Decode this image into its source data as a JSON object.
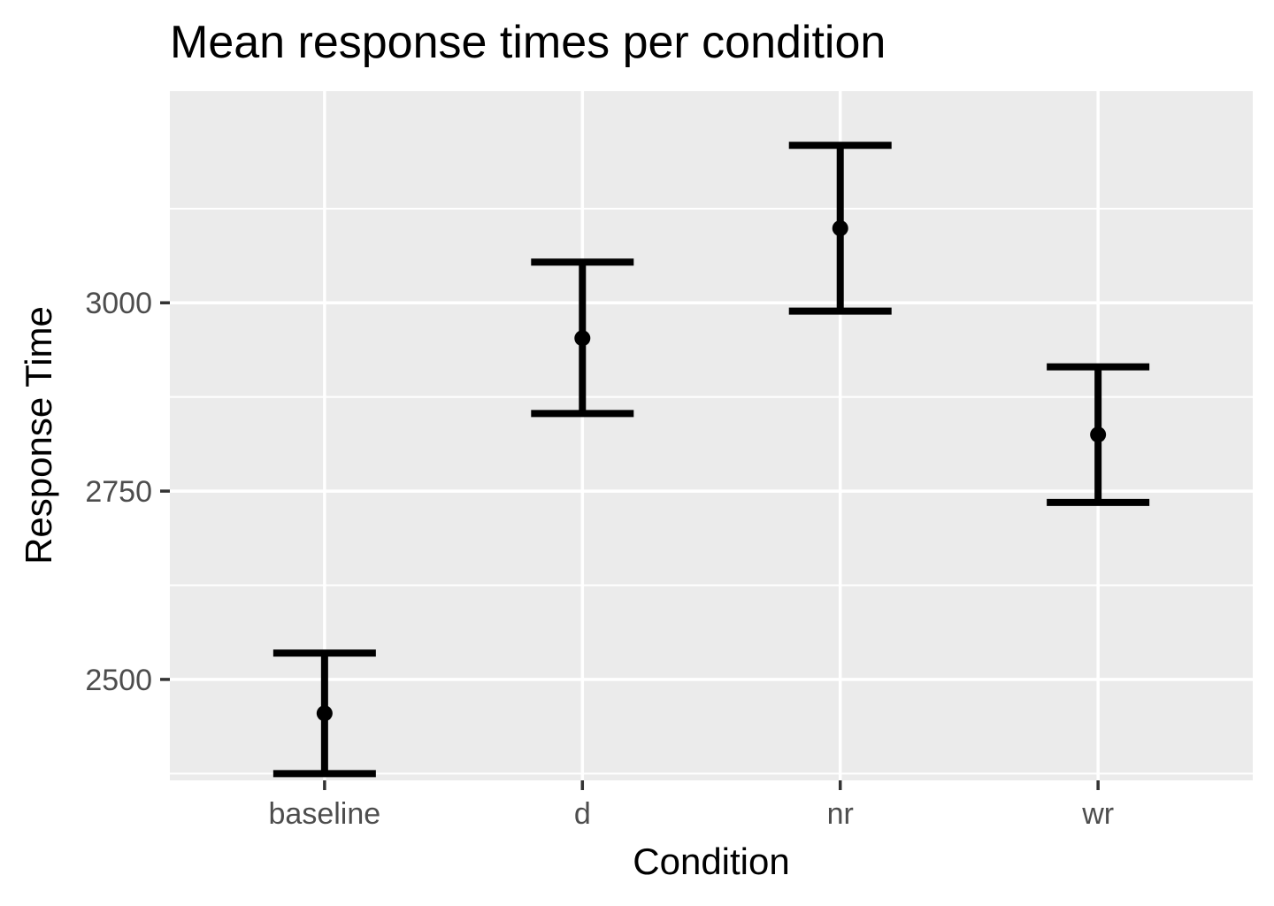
{
  "chart_data": {
    "type": "errorbar",
    "title": "Mean response times per condition",
    "xlabel": "Condition",
    "ylabel": "Response Time",
    "categories": [
      "baseline",
      "d",
      "nr",
      "wr"
    ],
    "series": [
      {
        "name": "Mean response time",
        "values": [
          2455,
          2953,
          3099,
          2825
        ],
        "lower": [
          2375,
          2853,
          2989,
          2735
        ],
        "upper": [
          2535,
          3054,
          3209,
          2915
        ]
      }
    ],
    "y_ticks": [
      2500,
      2750,
      3000
    ],
    "y_tick_labels": [
      "2500",
      "2750",
      "3000"
    ],
    "ylim": [
      2366,
      3281
    ],
    "grid": true,
    "legend": "none",
    "colors": {
      "panel_background": "#ebebeb",
      "grid_line": "#ffffff",
      "mark": "#000000",
      "tick_label": "#4d4d4d",
      "tick_mark": "#333333"
    }
  }
}
